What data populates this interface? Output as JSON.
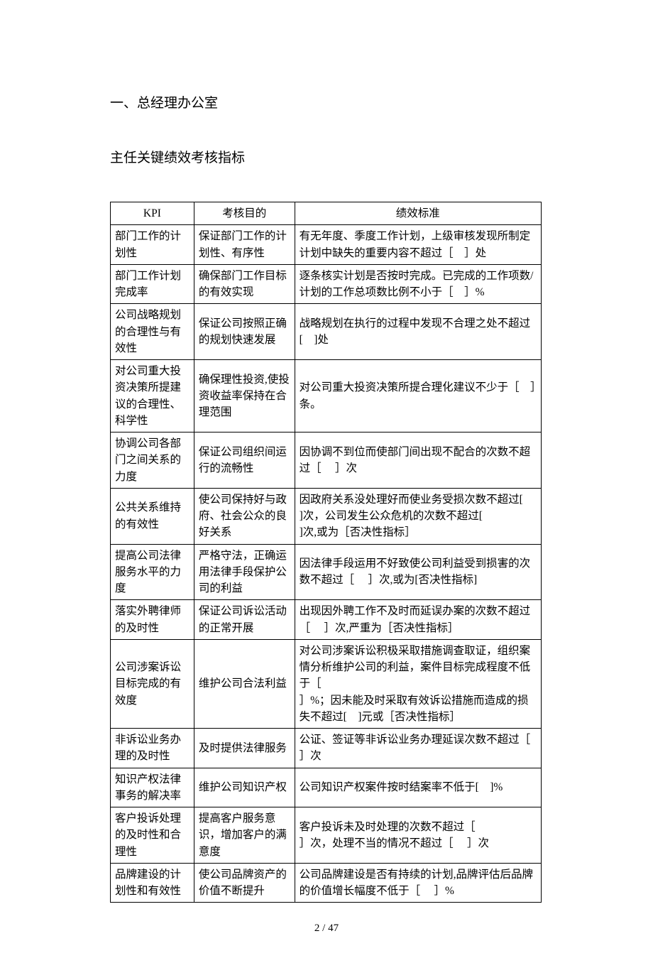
{
  "heading": "一、总经理办公室",
  "subheading": "主任关键绩效考核指标",
  "table": {
    "columns": [
      "KPI",
      "考核目的",
      "绩效标准"
    ],
    "rows": [
      {
        "kpi": "部门工作的计划性",
        "purpose": "保证部门工作的计划性、有序性",
        "standard": "有无年度、季度工作计划，上级审核发现所制定计划中缺失的重要内容不超过［　］处"
      },
      {
        "kpi": "部门工作计划完成率",
        "purpose": "确保部门工作目标的有效实现",
        "standard": "逐条核实计划是否按时完成。已完成的工作项数/计划的工作总项数比例不小于［　］%"
      },
      {
        "kpi": "公司战略规划的合理性与有效性",
        "purpose": "保证公司按照正确的规划快速发展",
        "standard": "战略规划在执行的过程中发现不合理之处不超过[　]处"
      },
      {
        "kpi": "对公司重大投资决策所提建议的合理性、科学性",
        "purpose": "确保理性投资,使投资收益率保持在合理范围",
        "standard": "对公司重大投资决策所提合理化建议不少于［　］条。"
      },
      {
        "kpi": "协调公司各部门之间关系的力度",
        "purpose": "保证公司组织间运行的流畅性",
        "standard": "因协调不到位而使部门间出现不配合的次数不超过［　 ］次"
      },
      {
        "kpi": "公共关系维持的有效性",
        "purpose": "使公司保持好与政府、社会公众的良好关系",
        "standard": "因政府关系没处理好而使业务受损次数不超过[\n]次，公司发生公众危机的次数不超过[\n]次,或为［否决性指标］"
      },
      {
        "kpi": "提高公司法律服务水平的力度",
        "purpose": "严格守法，正确运用法律手段保护公司的利益",
        "standard": "因法律手段运用不好致使公司利益受到损害的次数不超过［　 ］次,或为[否决性指标]"
      },
      {
        "kpi": "落实外聘律师的及时性",
        "purpose": "保证公司诉讼活动的正常开展",
        "standard": "出现因外聘工作不及时而延误办案的次数不超过［　 ］次,严重为［否决性指标］"
      },
      {
        "kpi": "公司涉案诉讼目标完成的有效度",
        "purpose": "维护公司合法利益",
        "standard": "对公司涉案诉讼积极采取措施调查取证，组织案情分析维护公司的利益，案件目标完成程度不低于［\n］%；因未能及时采取有效诉讼措施而造成的损失不超过[　]元或［否决性指标］"
      },
      {
        "kpi": "非诉讼业务办理的及时性",
        "purpose": "及时提供法律服务",
        "standard": "公证、签证等非诉讼业务办理延误次数不超过［　 ］次"
      },
      {
        "kpi": "知识产权法律事务的解决率",
        "purpose": "维护公司知识产权",
        "standard": "公司知识产权案件按时结案率不低于[　]%"
      },
      {
        "kpi": "客户投诉处理的及时性和合理性",
        "purpose": "提高客户服务意识，增加客户的满意度",
        "standard": "客户投诉未及时处理的次数不超过［\n］次，处理不当的情况不超过［　 ］次"
      },
      {
        "kpi": "品牌建设的计划性和有效性",
        "purpose": "使公司品牌资产的价值不断提升",
        "standard": "公司品牌建设是否有持续的计划,品牌评估后品牌的价值增长幅度不低于［　 ］%"
      }
    ]
  },
  "footer": "2 / 47"
}
